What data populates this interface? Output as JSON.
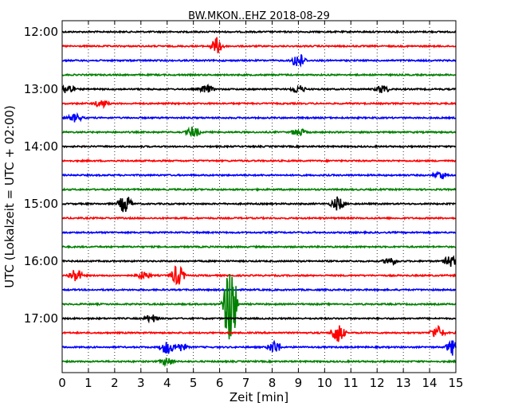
{
  "chart_data": {
    "type": "line",
    "title": "BW.MKON..EHZ 2018-08-29",
    "xlabel": "Zeit  [min]",
    "ylabel": "UTC (Lokalzeit = UTC + 02:00)",
    "xlim": [
      0,
      15
    ],
    "x_ticks": [
      0,
      1,
      2,
      3,
      4,
      5,
      6,
      7,
      8,
      9,
      10,
      11,
      12,
      13,
      14,
      15
    ],
    "y_ticks": [
      "12:00",
      "13:00",
      "14:00",
      "15:00",
      "16:00",
      "17:00"
    ],
    "grid": true,
    "trace_colors": [
      "#000000",
      "#ff0000",
      "#0000ff",
      "#008000"
    ],
    "traces": [
      {
        "start": "12:00",
        "color": "#000000",
        "events": []
      },
      {
        "start": "12:15",
        "color": "#ff0000",
        "events": [
          {
            "t": 5.9,
            "amp": 0.6
          }
        ]
      },
      {
        "start": "12:30",
        "color": "#0000ff",
        "events": [
          {
            "t": 9.0,
            "amp": 0.6
          }
        ]
      },
      {
        "start": "12:45",
        "color": "#008000",
        "events": []
      },
      {
        "start": "13:00",
        "color": "#000000",
        "events": [
          {
            "t": 0.2,
            "amp": 0.4
          },
          {
            "t": 5.5,
            "amp": 0.3
          },
          {
            "t": 9.0,
            "amp": 0.3
          },
          {
            "t": 12.2,
            "amp": 0.3
          }
        ]
      },
      {
        "start": "13:15",
        "color": "#ff0000",
        "events": [
          {
            "t": 1.5,
            "amp": 0.3
          }
        ]
      },
      {
        "start": "13:30",
        "color": "#0000ff",
        "events": [
          {
            "t": 0.5,
            "amp": 0.3
          }
        ]
      },
      {
        "start": "13:45",
        "color": "#008000",
        "events": [
          {
            "t": 5.0,
            "amp": 0.4
          },
          {
            "t": 9.0,
            "amp": 0.3
          }
        ]
      },
      {
        "start": "14:00",
        "color": "#000000",
        "events": []
      },
      {
        "start": "14:15",
        "color": "#ff0000",
        "events": []
      },
      {
        "start": "14:30",
        "color": "#0000ff",
        "events": [
          {
            "t": 14.4,
            "amp": 0.3
          }
        ]
      },
      {
        "start": "14:45",
        "color": "#008000",
        "events": []
      },
      {
        "start": "15:00",
        "color": "#000000",
        "events": [
          {
            "t": 2.4,
            "amp": 0.7
          },
          {
            "t": 10.5,
            "amp": 0.5
          }
        ]
      },
      {
        "start": "15:15",
        "color": "#ff0000",
        "events": []
      },
      {
        "start": "15:30",
        "color": "#0000ff",
        "events": []
      },
      {
        "start": "15:45",
        "color": "#008000",
        "events": []
      },
      {
        "start": "16:00",
        "color": "#000000",
        "events": [
          {
            "t": 12.5,
            "amp": 0.3
          },
          {
            "t": 14.8,
            "amp": 0.4
          }
        ]
      },
      {
        "start": "16:15",
        "color": "#ff0000",
        "events": [
          {
            "t": 0.5,
            "amp": 0.5
          },
          {
            "t": 3.1,
            "amp": 0.3
          },
          {
            "t": 4.4,
            "amp": 0.8
          }
        ]
      },
      {
        "start": "16:30",
        "color": "#0000ff",
        "events": []
      },
      {
        "start": "16:45",
        "color": "#008000",
        "events": [
          {
            "t": 6.4,
            "amp": 3.5
          }
        ]
      },
      {
        "start": "17:00",
        "color": "#000000",
        "events": [
          {
            "t": 3.4,
            "amp": 0.3
          }
        ]
      },
      {
        "start": "17:15",
        "color": "#ff0000",
        "events": [
          {
            "t": 10.5,
            "amp": 0.8
          },
          {
            "t": 14.3,
            "amp": 0.5
          }
        ]
      },
      {
        "start": "17:30",
        "color": "#0000ff",
        "events": [
          {
            "t": 4.0,
            "amp": 0.5
          },
          {
            "t": 4.5,
            "amp": 0.3
          },
          {
            "t": 8.1,
            "amp": 0.5
          },
          {
            "t": 14.9,
            "amp": 0.6
          }
        ]
      },
      {
        "start": "17:45",
        "color": "#008000",
        "events": [
          {
            "t": 4.0,
            "amp": 0.3
          }
        ]
      }
    ]
  }
}
